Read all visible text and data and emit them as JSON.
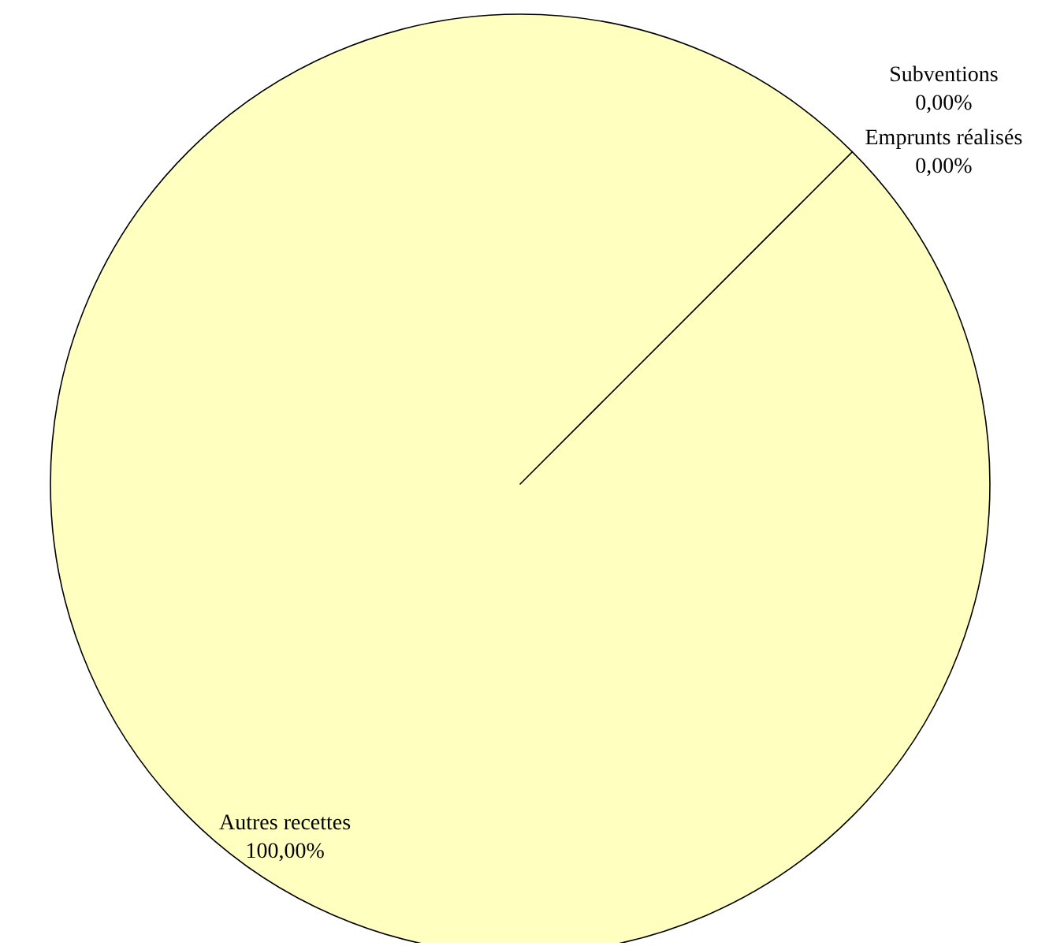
{
  "chart_data": {
    "type": "pie",
    "categories": [
      "Subventions",
      "Emprunts réalisés",
      "Autres recettes"
    ],
    "values": [
      0,
      0,
      100
    ],
    "colors": [
      null,
      null,
      "#ffffc0"
    ],
    "value_labels": [
      "0,00%",
      "0,00%",
      "100,00%"
    ]
  }
}
